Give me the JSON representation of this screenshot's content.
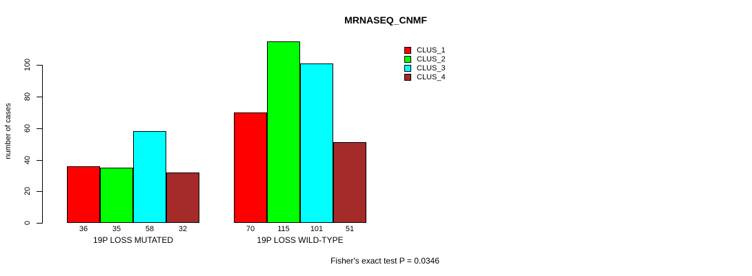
{
  "chart_data": {
    "type": "bar",
    "title": "MRNASEQ_CNMF",
    "ylabel": "number of cases",
    "xlabel": "",
    "ylim": [
      0,
      100
    ],
    "yticks": [
      0,
      20,
      40,
      60,
      80,
      100
    ],
    "grid": false,
    "legend_position": "top-right",
    "categories": [
      "19P LOSS MUTATED",
      "19P LOSS WILD-TYPE"
    ],
    "series": [
      {
        "name": "CLUS_1",
        "color": "#FF0000",
        "values": [
          36,
          70
        ]
      },
      {
        "name": "CLUS_2",
        "color": "#00FF00",
        "values": [
          35,
          115
        ]
      },
      {
        "name": "CLUS_3",
        "color": "#00FFFF",
        "values": [
          58,
          101
        ]
      },
      {
        "name": "CLUS_4",
        "color": "#A52A2A",
        "values": [
          32,
          51
        ]
      }
    ],
    "bar_value_labels": [
      [
        36,
        35,
        58,
        32
      ],
      [
        70,
        115,
        101,
        51
      ]
    ],
    "annotation": "Fisher's exact test P = 0.0346",
    "colors": {
      "axis": "#000000",
      "text": "#000000",
      "background": "#FFFFFF"
    }
  }
}
